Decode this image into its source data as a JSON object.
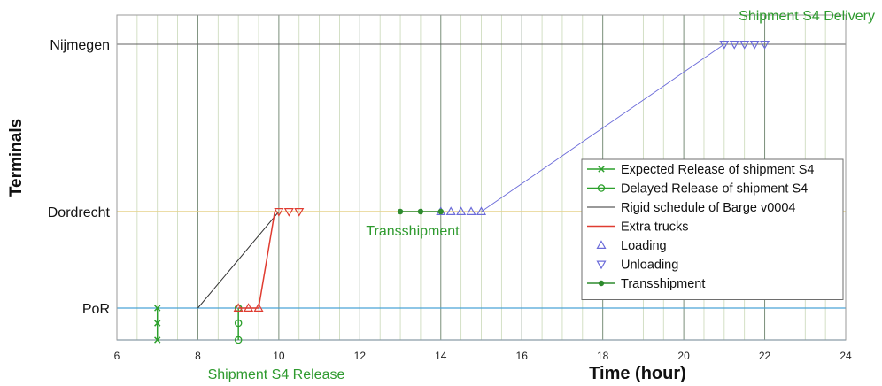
{
  "chart_data": {
    "type": "line",
    "title": "",
    "xlabel": "Time (hour)",
    "ylabel": "Terminals",
    "xlim": [
      6,
      24
    ],
    "x_ticks": [
      6,
      8,
      10,
      12,
      14,
      16,
      18,
      20,
      22,
      24
    ],
    "x_tick_labels": [
      "6",
      "8",
      "10",
      "12",
      "14",
      "16",
      "18",
      "20",
      "22",
      "24"
    ],
    "y_categories": [
      "PoR",
      "Dordrecht",
      "Nijmegen"
    ],
    "grid": true,
    "legend_position": "right",
    "colors": {
      "expected": "#2ca02c",
      "delayed": "#2ca02c",
      "rigid": "#333333",
      "extra_trucks": "#e03c31",
      "loading": "#6b6bd9",
      "unloading": "#6b6bd9",
      "transshipment": "#2e8b2e",
      "annotation": "#2e9a2e",
      "por_line": "#4aa3d6",
      "dordrecht_line": "#e6d28a",
      "nijmegen_line": "#606060"
    },
    "series": [
      {
        "name": "Expected Release of shipment S4",
        "key": "expected",
        "marker": "x",
        "points": [
          [
            7,
            -0.38
          ],
          [
            7,
            -0.18
          ],
          [
            7,
            0
          ]
        ]
      },
      {
        "name": "Delayed Release of shipment S4",
        "key": "delayed",
        "marker": "o",
        "points": [
          [
            9,
            -0.38
          ],
          [
            9,
            -0.18
          ],
          [
            9,
            0
          ]
        ]
      },
      {
        "name": "Rigid schedule of Barge v0004",
        "key": "rigid",
        "marker": "none",
        "points": [
          [
            8,
            0
          ],
          [
            10,
            1
          ]
        ]
      },
      {
        "name": "Extra trucks",
        "key": "extra_trucks",
        "marker": "none",
        "points": [
          [
            9,
            0
          ],
          [
            9.5,
            0
          ],
          [
            9.9,
            1
          ]
        ]
      },
      {
        "name": "Loading",
        "key": "loading",
        "marker": "triangle-up",
        "points": [
          [
            14,
            1
          ],
          [
            14.25,
            1
          ],
          [
            14.5,
            1
          ],
          [
            14.75,
            1
          ],
          [
            15,
            1
          ]
        ]
      },
      {
        "name": "Unloading",
        "key": "unloading",
        "marker": "triangle-down",
        "points": [
          [
            21,
            2
          ],
          [
            21.25,
            2
          ],
          [
            21.5,
            2
          ],
          [
            21.75,
            2
          ],
          [
            22,
            2
          ]
        ]
      },
      {
        "name": "Transshipment",
        "key": "transshipment",
        "marker": "dot",
        "points": [
          [
            13,
            1
          ],
          [
            13.5,
            1
          ],
          [
            14,
            1
          ]
        ]
      }
    ],
    "extra_markers": [
      {
        "key": "extra_trucks",
        "marker": "triangle-up",
        "points": [
          [
            9,
            0
          ],
          [
            9.25,
            0
          ],
          [
            9.5,
            0
          ]
        ]
      },
      {
        "key": "extra_trucks",
        "marker": "triangle-down",
        "points": [
          [
            10,
            1
          ],
          [
            10.25,
            1
          ],
          [
            10.5,
            1
          ]
        ]
      }
    ],
    "connectors": [
      {
        "key": "loading",
        "points": [
          [
            15,
            1
          ],
          [
            21,
            2
          ]
        ]
      }
    ],
    "annotations": [
      {
        "text": "Shipment S4 Delivery",
        "x": 22.4,
        "y": 2.32
      },
      {
        "text": "Transshipment",
        "x": 13.4,
        "y": 0.89
      },
      {
        "text": "Shipment S4 Release",
        "x": 9.5,
        "y": -0.6
      }
    ]
  }
}
